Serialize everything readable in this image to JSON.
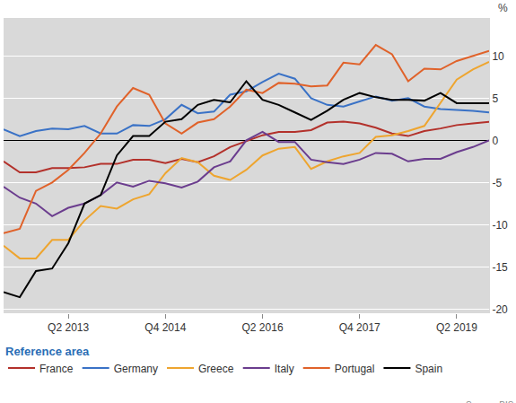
{
  "chart_data": {
    "type": "line",
    "categories": [
      null,
      null,
      null,
      null,
      "Q2 2013",
      null,
      null,
      null,
      null,
      null,
      "Q4 2014",
      null,
      null,
      null,
      null,
      null,
      "Q2 2016",
      null,
      null,
      null,
      null,
      null,
      "Q4 2017",
      null,
      null,
      null,
      null,
      null,
      "Q2 2019",
      null,
      null
    ],
    "series": [
      {
        "name": "France",
        "color": "#b3312b",
        "values": [
          -2.5,
          -3.8,
          -3.8,
          -3.3,
          -3.3,
          -3.2,
          -2.8,
          -2.8,
          -2.3,
          -2.3,
          -2.7,
          -2.2,
          -2.6,
          -1.9,
          -0.8,
          -0.1,
          0.6,
          1.0,
          1.0,
          1.2,
          2.1,
          2.2,
          2.0,
          1.5,
          0.8,
          0.5,
          1.1,
          1.4,
          1.8,
          2.0,
          2.2
        ]
      },
      {
        "name": "Germany",
        "color": "#3a72c6",
        "values": [
          1.3,
          0.5,
          1.1,
          1.4,
          1.3,
          1.7,
          0.8,
          0.8,
          1.8,
          1.7,
          2.5,
          4.2,
          3.2,
          3.4,
          5.4,
          5.8,
          6.9,
          7.9,
          7.3,
          5.0,
          4.2,
          4.0,
          4.6,
          5.2,
          4.7,
          5.0,
          4.0,
          3.7,
          3.6,
          3.5,
          3.3
        ]
      },
      {
        "name": "Greece",
        "color": "#eea52f",
        "values": [
          -12.5,
          -14.0,
          -14.0,
          -11.8,
          -11.8,
          -9.5,
          -7.8,
          -8.1,
          -7.0,
          -6.4,
          -3.9,
          -2.1,
          -2.6,
          -4.2,
          -4.7,
          -3.5,
          -1.8,
          -1.0,
          -0.8,
          -3.4,
          -2.5,
          -1.9,
          -1.5,
          0.4,
          0.6,
          1.1,
          1.7,
          4.5,
          7.2,
          8.4,
          9.3
        ]
      },
      {
        "name": "Italy",
        "color": "#6b3d8e",
        "values": [
          -5.5,
          -6.8,
          -7.5,
          -9.0,
          -8.0,
          -7.5,
          -6.5,
          -5.0,
          -5.5,
          -4.8,
          -5.1,
          -5.6,
          -4.9,
          -3.2,
          -2.5,
          0.0,
          1.0,
          -0.2,
          -0.2,
          -2.3,
          -2.6,
          -2.8,
          -2.3,
          -1.5,
          -1.6,
          -2.5,
          -2.2,
          -2.2,
          -1.4,
          -0.8,
          0.0
        ]
      },
      {
        "name": "Portugal",
        "color": "#e0622a",
        "values": [
          -11.0,
          -10.5,
          -6.0,
          -5.0,
          -3.5,
          -1.5,
          0.8,
          4.0,
          6.2,
          5.4,
          2.0,
          0.8,
          2.1,
          2.5,
          4.0,
          6.0,
          5.6,
          6.8,
          6.7,
          6.4,
          6.5,
          9.2,
          9.0,
          11.3,
          10.2,
          7.0,
          8.5,
          8.4,
          9.4,
          10.0,
          10.6
        ]
      },
      {
        "name": "Spain",
        "color": "#000000",
        "values": [
          -18.0,
          -18.6,
          -15.5,
          -15.2,
          -12.2,
          -7.5,
          -6.5,
          -1.8,
          0.5,
          0.5,
          2.2,
          2.5,
          4.2,
          4.8,
          4.5,
          7.0,
          4.8,
          4.2,
          3.3,
          2.4,
          3.5,
          4.8,
          5.6,
          5.1,
          4.8,
          4.8,
          4.7,
          5.6,
          4.4,
          4.4,
          4.4
        ]
      }
    ],
    "ylabel": "%",
    "ylim": [
      -20.5,
      14.5
    ],
    "yticks": [
      -20,
      -15,
      -10,
      -5,
      0,
      5,
      10
    ],
    "grid": true,
    "legend": "bottom",
    "legend_title": "Reference area",
    "annotations": [
      "Source: BIS"
    ]
  }
}
